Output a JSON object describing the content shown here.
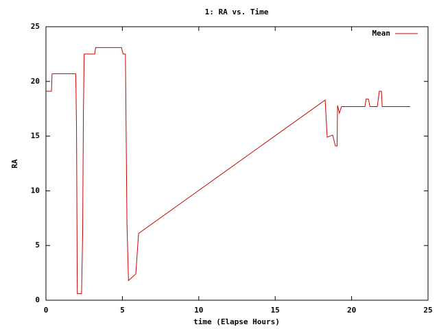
{
  "chart_data": {
    "type": "line",
    "title": "1: RA vs. Time",
    "x_label": "time (Elapse Hours)",
    "y_label": "RA",
    "x": [
      0,
      0.36,
      0.4,
      1.95,
      2.0,
      2.05,
      2.33,
      2.4,
      2.45,
      2.5,
      3.19,
      3.25,
      4.94,
      5.05,
      5.2,
      5.3,
      5.4,
      5.88,
      6.06,
      18.27,
      18.4,
      18.76,
      18.94,
      19.05,
      19.08,
      19.2,
      19.34,
      20.87,
      20.95,
      21.1,
      21.2,
      21.68,
      21.81,
      21.95,
      22.0,
      23.83
    ],
    "series": [
      {
        "name": "Mean",
        "color": "#cc0000",
        "values": [
          19.1,
          19.1,
          20.7,
          20.7,
          15.8,
          0.6,
          0.6,
          6,
          17,
          22.5,
          22.5,
          23.1,
          23.1,
          22.5,
          22.5,
          7,
          1.8,
          2.4,
          6.1,
          18.3,
          14.9,
          15.1,
          14.1,
          14.1,
          17.8,
          17.1,
          17.7,
          17.7,
          18.4,
          18.4,
          17.7,
          17.7,
          19.1,
          19.1,
          17.7,
          17.7
        ]
      }
    ],
    "xlim": [
      0,
      25
    ],
    "xticks": [
      0,
      5,
      10,
      15,
      20,
      25
    ],
    "ylim": [
      0,
      25
    ],
    "yticks": [
      0,
      5,
      10,
      15,
      20,
      25
    ],
    "grid": false,
    "legend_position": "top-right"
  }
}
